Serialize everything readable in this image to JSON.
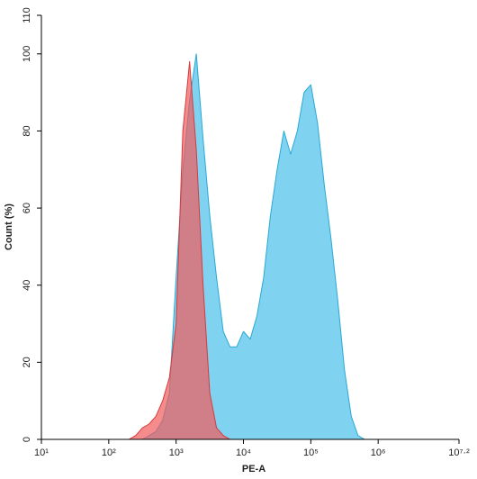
{
  "chart_data": {
    "type": "area",
    "xscale": "log",
    "xlabel": "PE-A",
    "ylabel": "Count (%)",
    "x": [
      100,
      125.9,
      158.5,
      199.5,
      251.2,
      316.2,
      398.1,
      501.2,
      631,
      794.3,
      1000,
      1259,
      1585,
      1995,
      2512,
      3162,
      3981,
      5012,
      6310,
      7943,
      10000,
      12589,
      15849,
      19953,
      25119,
      31623,
      39811,
      50119,
      63096,
      79433,
      100000,
      125893,
      158489,
      199526,
      251189,
      316228,
      398107,
      501187,
      630957,
      794328,
      1000000
    ],
    "series": [
      {
        "color": "#7fd3f0",
        "values": [
          0,
          0,
          0,
          0,
          0,
          0,
          1,
          2,
          5,
          12,
          42,
          70,
          88,
          100,
          78,
          58,
          42,
          28,
          24,
          24,
          28,
          26,
          32,
          42,
          58,
          70,
          80,
          74,
          80,
          90,
          92,
          82,
          66,
          52,
          36,
          18,
          6,
          1,
          0,
          0,
          0
        ]
      },
      {
        "color": "#f25a5a",
        "values": [
          0,
          0,
          0,
          0,
          1,
          3,
          4,
          6,
          10,
          16,
          30,
          80,
          98,
          75,
          40,
          12,
          3,
          1,
          0,
          0,
          0,
          0,
          0,
          0,
          0,
          0,
          0,
          0,
          0,
          0,
          0,
          0,
          0,
          0,
          0,
          0,
          0,
          0,
          0,
          0,
          0
        ]
      }
    ],
    "xlim": [
      10,
      15848932
    ],
    "xticks": [
      {
        "value": 10,
        "label": "10¹"
      },
      {
        "value": 100,
        "label": "10²"
      },
      {
        "value": 1000,
        "label": "10³"
      },
      {
        "value": 10000,
        "label": "10⁴"
      },
      {
        "value": 100000,
        "label": "10⁵"
      },
      {
        "value": 1000000,
        "label": "10⁶"
      },
      {
        "value": 15848932,
        "label": "10⁷·²"
      }
    ],
    "ylim": [
      0,
      110
    ],
    "yticks": [
      0,
      20,
      40,
      60,
      80,
      100,
      110
    ]
  }
}
